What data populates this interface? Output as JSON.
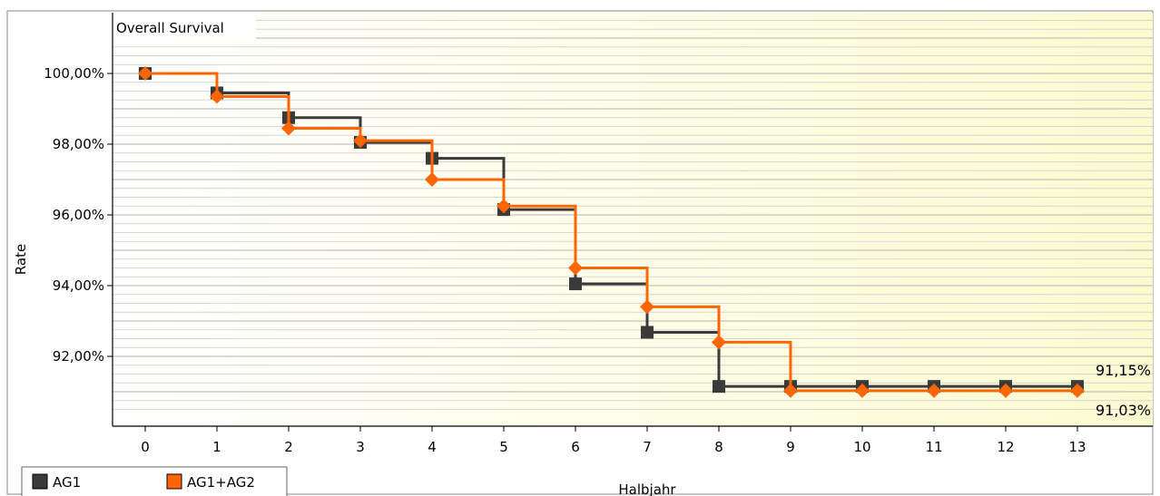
{
  "colors": {
    "series_AG1": "#3a3a3a",
    "series_AG1_AG2": "#ff6600",
    "plot_background_left": "#ffffff",
    "plot_background_right": "#fbfbd0",
    "gridline": "#c8c8c8"
  },
  "chart_data": {
    "type": "line",
    "step": true,
    "title": "Overall Survival",
    "xlabel": "Halbjahr",
    "ylabel": "Rate",
    "x": [
      0,
      1,
      2,
      3,
      4,
      5,
      6,
      7,
      8,
      9,
      10,
      11,
      12,
      13
    ],
    "xlim": [
      -1,
      13.5
    ],
    "ylim": [
      90.3,
      101.7
    ],
    "yticks": [
      92,
      94,
      96,
      98,
      100
    ],
    "ytick_labels": [
      "92,00%",
      "94,00%",
      "96,00%",
      "98,00%",
      "100,00%"
    ],
    "xtick_labels": [
      "0",
      "1",
      "2",
      "3",
      "4",
      "5",
      "6",
      "7",
      "8",
      "9",
      "10",
      "11",
      "12",
      "13"
    ],
    "grid": true,
    "legend_position": "bottom-left",
    "series": [
      {
        "name": "AG1",
        "color": "#3a3a3a",
        "marker": "square",
        "values": [
          100.0,
          99.45,
          98.75,
          98.05,
          97.6,
          96.15,
          94.05,
          92.68,
          91.15,
          91.15,
          91.15,
          91.15,
          91.15,
          91.15
        ],
        "end_label": "91,15%"
      },
      {
        "name": "AG1+AG2",
        "color": "#ff6600",
        "marker": "diamond",
        "values": [
          100.0,
          99.35,
          98.45,
          98.1,
          97.0,
          96.25,
          94.5,
          93.4,
          92.4,
          91.03,
          91.03,
          91.03,
          91.03,
          91.03
        ],
        "end_label": "91,03%"
      }
    ]
  }
}
